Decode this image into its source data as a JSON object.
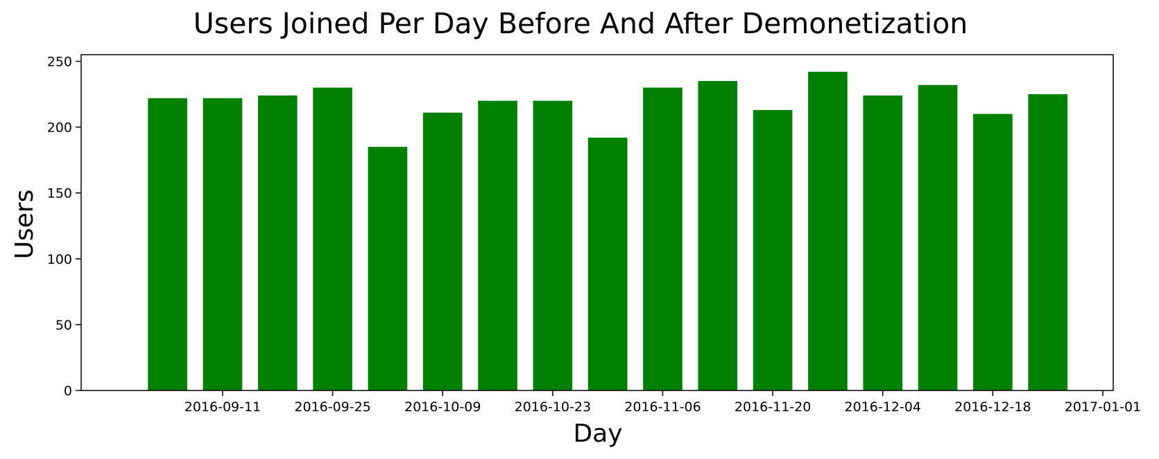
{
  "chart_data": {
    "type": "bar",
    "title": "Users Joined Per Day Before And After Demonetization",
    "xlabel": "Day",
    "ylabel": "Users",
    "x_dates": [
      "2016-09-04",
      "2016-09-11",
      "2016-09-18",
      "2016-09-25",
      "2016-10-02",
      "2016-10-09",
      "2016-10-16",
      "2016-10-23",
      "2016-10-30",
      "2016-11-06",
      "2016-11-13",
      "2016-11-20",
      "2016-11-27",
      "2016-12-04",
      "2016-12-11",
      "2016-12-18",
      "2016-12-25"
    ],
    "values": [
      222,
      222,
      224,
      230,
      185,
      211,
      220,
      220,
      192,
      230,
      235,
      213,
      242,
      224,
      232,
      210,
      225
    ],
    "ylim": [
      0,
      255
    ],
    "yticks": [
      0,
      50,
      100,
      150,
      200,
      250
    ],
    "xticks": [
      "2016-09-11",
      "2016-09-25",
      "2016-10-09",
      "2016-10-23",
      "2016-11-06",
      "2016-11-20",
      "2016-12-04",
      "2016-12-18",
      "2017-01-01"
    ],
    "xlim": [
      "2016-08-24",
      "2017-01-01"
    ],
    "bar_color": "#008000",
    "grid": false,
    "legend": "none"
  }
}
